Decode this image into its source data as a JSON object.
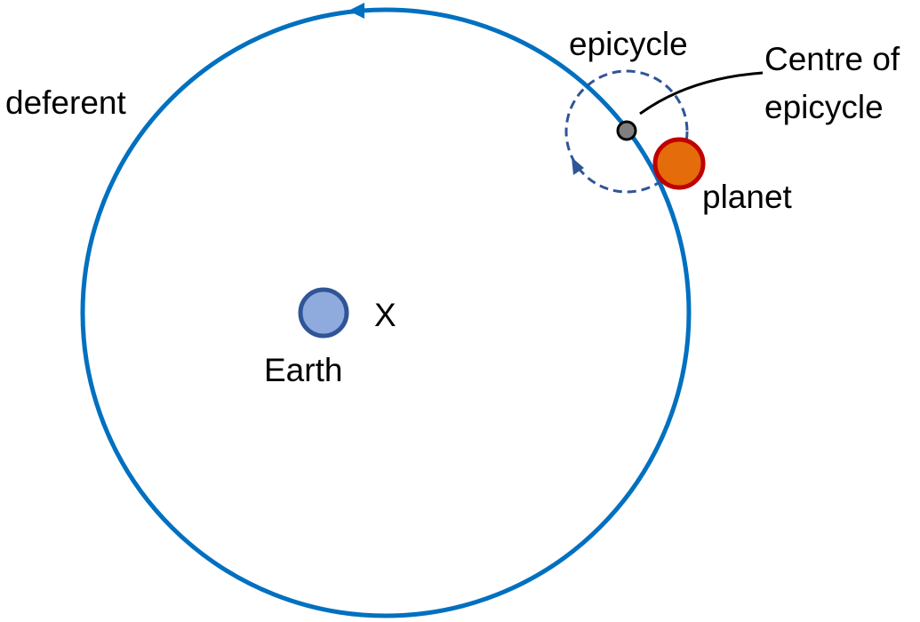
{
  "labels": {
    "deferent": "deferent",
    "epicycle": "epicycle",
    "centre_line1": "Centre of",
    "centre_line2": "epicycle",
    "planet": "planet",
    "earth": "Earth",
    "x_mark": "X"
  },
  "colors": {
    "deferent": "#0070C0",
    "epicycle": "#2F5597",
    "earth_fill": "#8FAADC",
    "earth_stroke": "#2F5597",
    "planet_fill": "#E46C0A",
    "planet_stroke": "#C00000",
    "centre_fill": "#7F7F7F",
    "leader": "#000000"
  }
}
